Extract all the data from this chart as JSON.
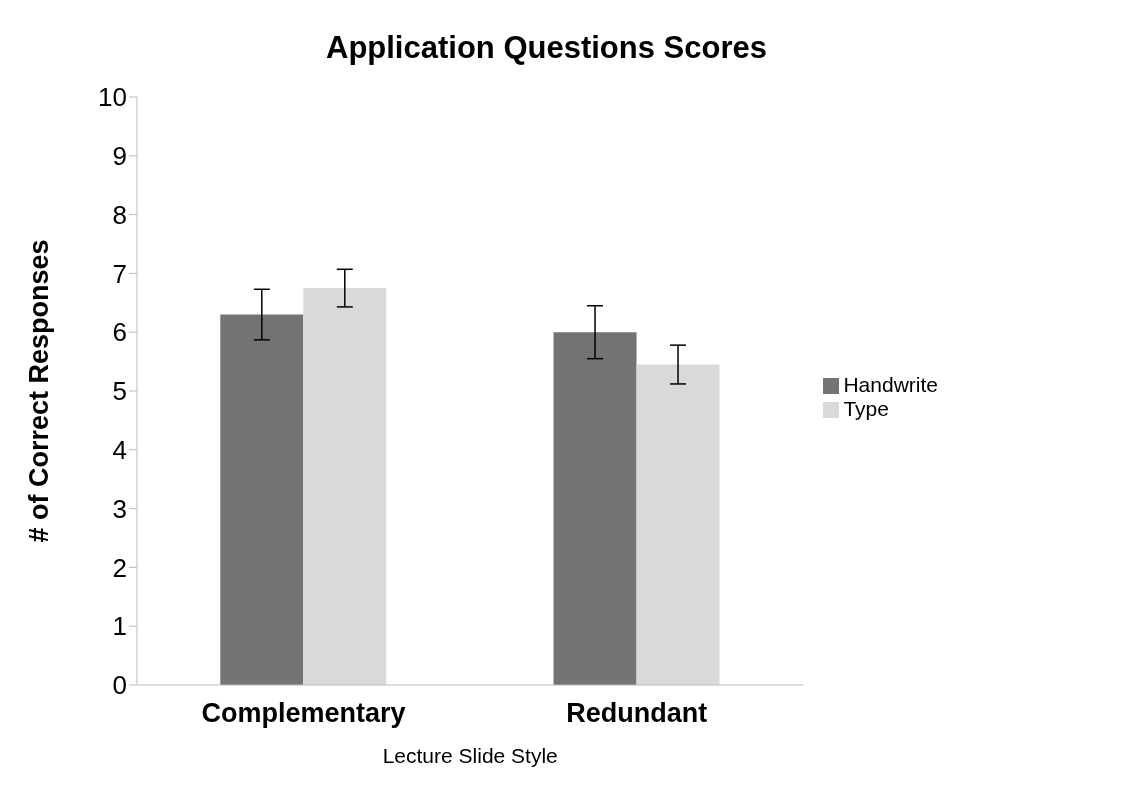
{
  "chart_data": {
    "type": "bar",
    "title": "Application Questions Scores",
    "xlabel": "Lecture Slide Style",
    "ylabel": "# of Correct Responses",
    "categories": [
      "Complementary",
      "Redundant"
    ],
    "series": [
      {
        "name": "Handwrite",
        "color": "#737373",
        "values": [
          6.3,
          6.0
        ],
        "errors": [
          0.43,
          0.45
        ]
      },
      {
        "name": "Type",
        "color": "#d9d9d9",
        "values": [
          6.75,
          5.45
        ],
        "errors": [
          0.32,
          0.33
        ]
      }
    ],
    "ylim": [
      0,
      10
    ],
    "yticks": [
      0,
      1,
      2,
      3,
      4,
      5,
      6,
      7,
      8,
      9,
      10
    ],
    "grid": false,
    "legend": "right"
  }
}
